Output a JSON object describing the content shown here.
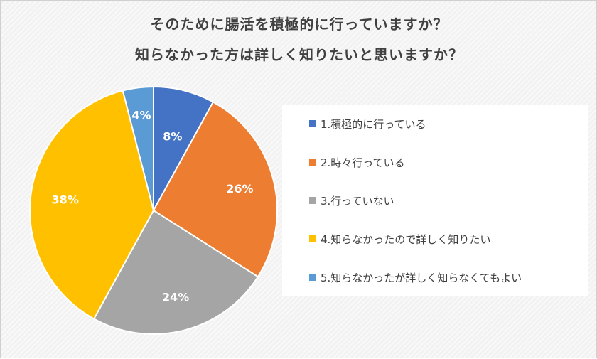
{
  "chart_data": {
    "type": "pie",
    "title_lines": [
      "そのために腸活を積極的に行っていますか？",
      "知らなかった方は詳しく知りたいと思いますか？"
    ],
    "slices": [
      {
        "name": "1.積極的に行っている",
        "value": 8,
        "label": "8%",
        "color": "#4472c4"
      },
      {
        "name": "2.時々行っている",
        "value": 26,
        "label": "26%",
        "color": "#ed7d31"
      },
      {
        "name": "3.行っていない",
        "value": 24,
        "label": "24%",
        "color": "#a5a5a5"
      },
      {
        "name": "4.知らなかったので詳しく知りたい",
        "value": 38,
        "label": "38%",
        "color": "#ffc000"
      },
      {
        "name": "5.知らなかったが詳しく知らなくてもよい",
        "value": 4,
        "label": "4%",
        "color": "#5b9bd5"
      }
    ],
    "legend_position": "right"
  }
}
